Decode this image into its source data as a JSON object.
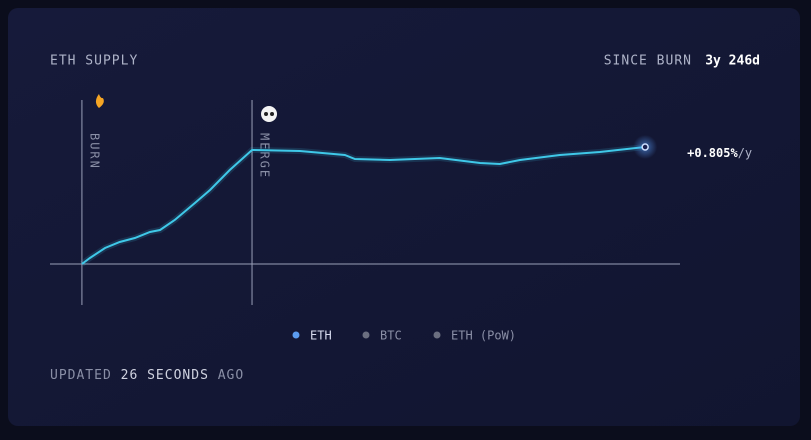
{
  "card": {
    "title": "ETH SUPPLY",
    "since_label": "SINCE BURN",
    "since_value": "3y 246d",
    "updated_prefix": "UPDATED",
    "updated_value": "26 SECONDS",
    "updated_suffix": "AGO"
  },
  "chart_data": {
    "type": "line",
    "x": [
      0,
      19,
      55,
      90,
      126,
      162,
      186,
      221,
      269,
      305,
      352,
      405,
      519,
      626,
      650,
      733,
      852,
      948,
      995,
      1043,
      1138,
      1233,
      1341
    ],
    "series": [
      {
        "name": "ETH",
        "color": "#3fc8e8",
        "values": [
          0,
          6,
          16,
          22,
          26,
          32,
          34,
          44,
          61,
          74,
          94,
          114,
          113,
          109,
          105,
          104,
          106,
          101,
          100,
          104,
          109,
          112,
          117
        ]
      }
    ],
    "xlim": [
      -76,
      1424
    ],
    "ylim": [
      -41,
      164
    ],
    "markers": [
      {
        "x": 0,
        "label": "BURN"
      },
      {
        "x": 405,
        "label": "MERGE"
      }
    ],
    "end_label": "+0.805%",
    "end_unit": "/y",
    "legend": [
      {
        "name": "ETH",
        "color": "#5b9cf0"
      },
      {
        "name": "BTC",
        "color": "#6b6f80"
      },
      {
        "name": "ETH (PoW)",
        "color": "#6b6f80"
      }
    ]
  }
}
